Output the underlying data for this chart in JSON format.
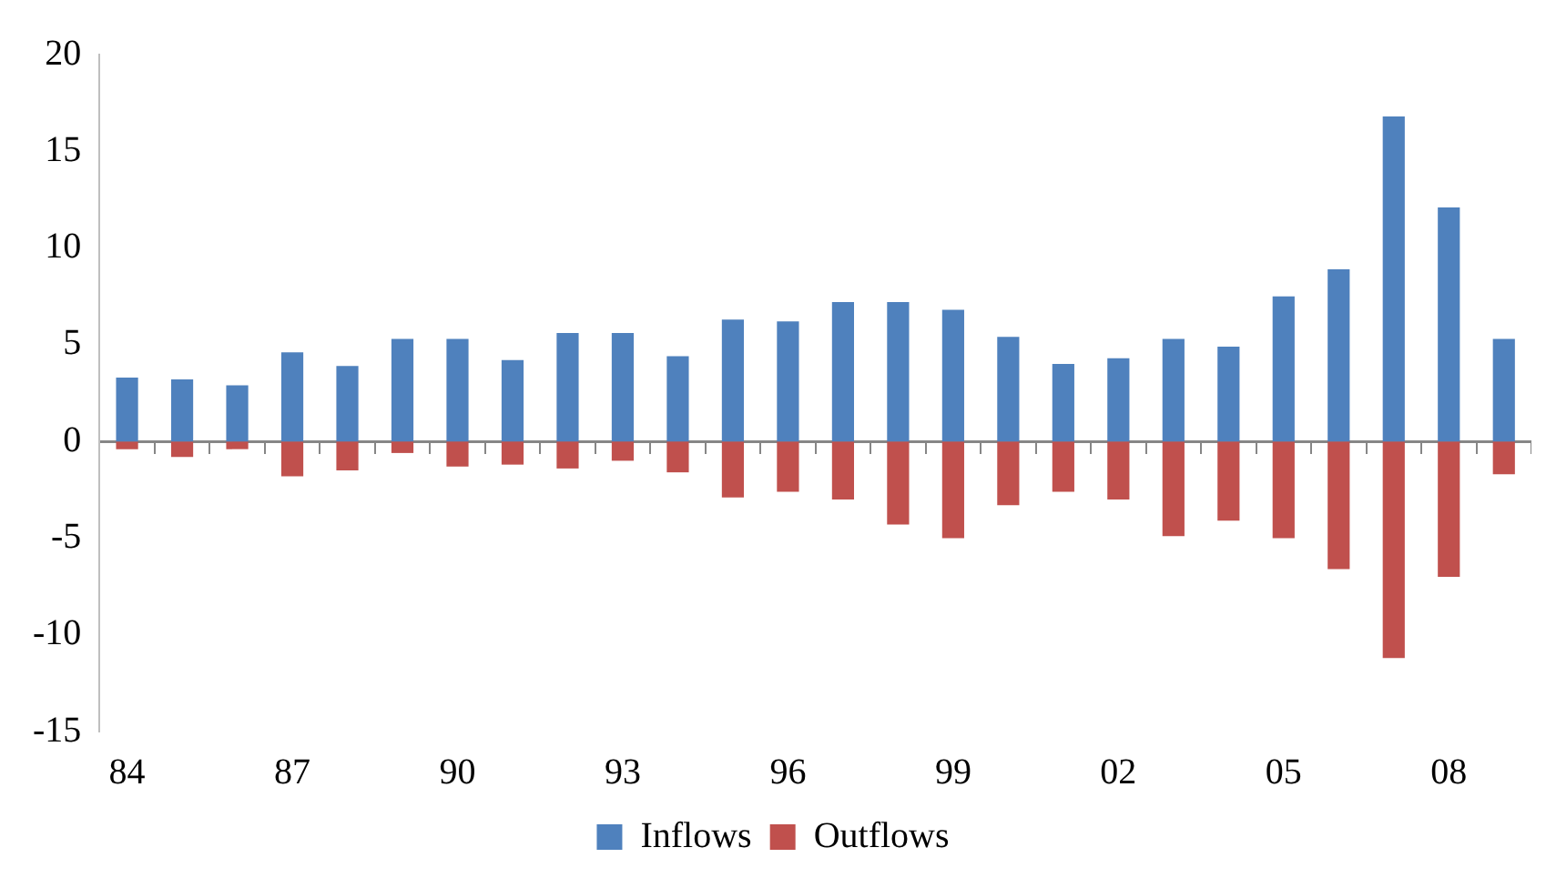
{
  "chart_data": {
    "type": "bar",
    "categories": [
      "84",
      null,
      null,
      "87",
      null,
      null,
      "90",
      null,
      null,
      "93",
      null,
      null,
      "96",
      null,
      null,
      "99",
      null,
      null,
      "02",
      null,
      null,
      "05",
      null,
      null,
      "08",
      null
    ],
    "series": [
      {
        "name": "Inflows",
        "color": "#4f81bd",
        "values": [
          3.3,
          3.2,
          2.9,
          4.6,
          3.9,
          5.3,
          5.3,
          4.2,
          5.6,
          5.6,
          4.4,
          6.3,
          6.2,
          7.2,
          7.2,
          6.8,
          5.4,
          4.0,
          4.3,
          5.3,
          4.9,
          7.5,
          8.9,
          16.8,
          12.1,
          5.3
        ]
      },
      {
        "name": "Outflows",
        "color": "#c0504d",
        "values": [
          -0.4,
          -0.8,
          -0.4,
          -1.8,
          -1.5,
          -0.6,
          -1.3,
          -1.2,
          -1.4,
          -1.0,
          -1.6,
          -2.9,
          -2.6,
          -3.0,
          -4.3,
          -5.0,
          -3.3,
          -2.6,
          -3.0,
          -4.9,
          -4.1,
          -5.0,
          -6.6,
          -11.2,
          -7.0,
          -1.7
        ]
      }
    ],
    "stacked": true,
    "ylim": [
      -15,
      20
    ],
    "yticks": [
      -15,
      -10,
      -5,
      0,
      5,
      10,
      15,
      20
    ],
    "legend": "bottom"
  }
}
